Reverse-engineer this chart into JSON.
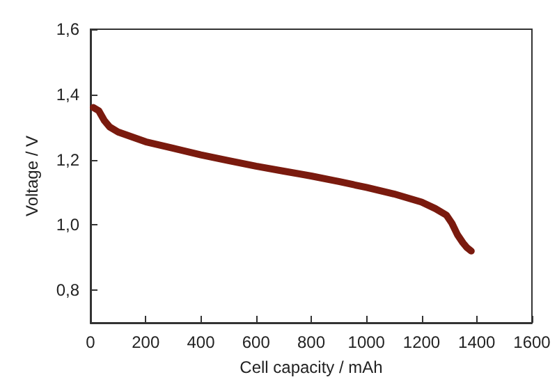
{
  "chart_data": {
    "type": "line",
    "xlabel": "Cell capacity / mAh",
    "ylabel": "Voltage / V",
    "x": [
      10,
      30,
      50,
      70,
      100,
      150,
      200,
      300,
      400,
      500,
      600,
      700,
      800,
      900,
      1000,
      1100,
      1200,
      1250,
      1290,
      1310,
      1330,
      1350,
      1365,
      1380
    ],
    "series": [
      {
        "color": "#7a1a0e",
        "values": [
          1.36,
          1.35,
          1.32,
          1.3,
          1.285,
          1.27,
          1.255,
          1.235,
          1.215,
          1.197,
          1.18,
          1.165,
          1.15,
          1.133,
          1.115,
          1.095,
          1.07,
          1.05,
          1.03,
          1.005,
          0.97,
          0.945,
          0.93,
          0.92
        ]
      }
    ],
    "xlim": [
      0,
      1600
    ],
    "xticks": [
      0,
      200,
      400,
      600,
      800,
      1000,
      1200,
      1400,
      1600
    ],
    "ylim": [
      0.7,
      1.6
    ],
    "yticks": [
      {
        "value": 0.8,
        "label": "0,8"
      },
      {
        "value": 1.0,
        "label": "1,0"
      },
      {
        "value": 1.2,
        "label": "1,2"
      },
      {
        "value": 1.4,
        "label": "1,4"
      },
      {
        "value": 1.6,
        "label": "1,6"
      }
    ],
    "grid": false,
    "marker": "none",
    "line_style": "solid"
  }
}
